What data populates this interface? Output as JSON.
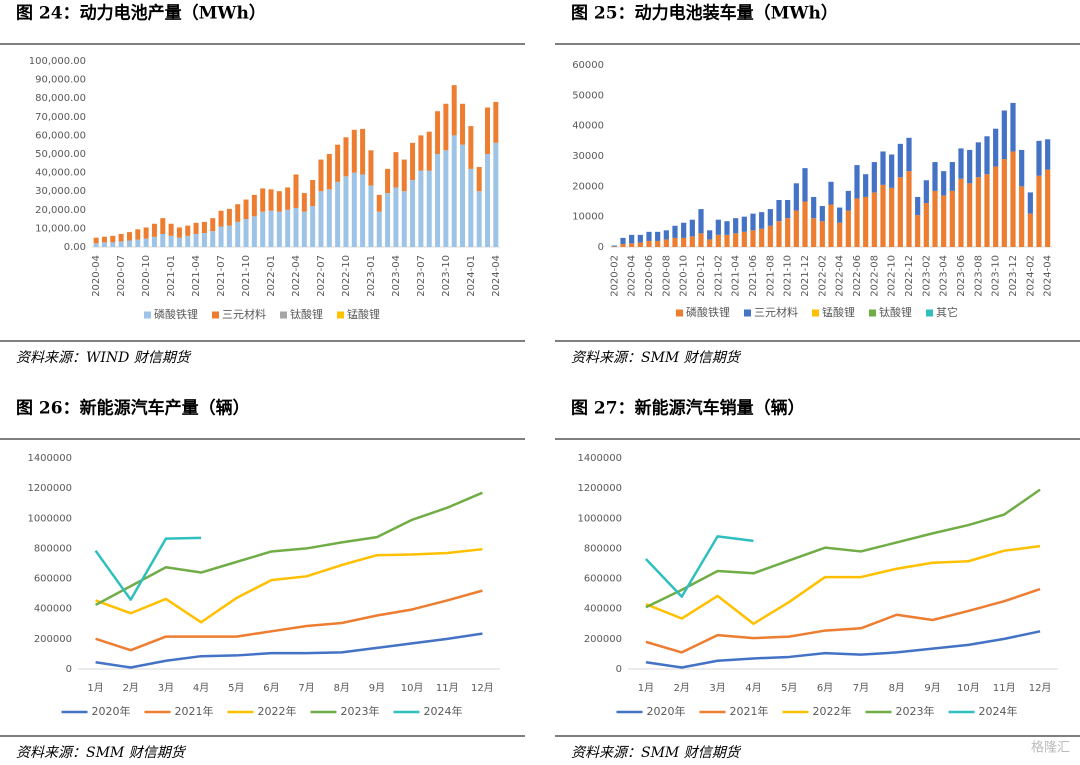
{
  "chart_data": [
    {
      "type": "bar",
      "stacked": true,
      "title": "图 24：动力电池产量（MWh）",
      "source": "资料来源：WIND 财信期货",
      "categories": [
        "2020-04",
        null,
        null,
        "2020-07",
        null,
        null,
        "2020-10",
        null,
        null,
        "2021-01",
        null,
        null,
        "2021-04",
        null,
        null,
        "2021-07",
        null,
        null,
        "2021-10",
        null,
        null,
        "2022-01",
        null,
        null,
        "2022-04",
        null,
        null,
        "2022-07",
        null,
        null,
        "2022-10",
        null,
        null,
        "2023-01",
        null,
        null,
        "2023-04",
        null,
        null,
        "2023-07",
        null,
        null,
        "2023-10",
        null,
        null,
        "2024-01",
        null,
        null,
        "2024-04"
      ],
      "series": [
        {
          "name": "磷酸铁锂",
          "color": "#9dc3e6",
          "values": [
            2000,
            2500,
            2500,
            3000,
            3500,
            4000,
            4500,
            5500,
            7000,
            6000,
            5000,
            6000,
            7000,
            7500,
            8500,
            11000,
            11500,
            13500,
            15000,
            16500,
            19000,
            19500,
            19000,
            20000,
            21000,
            19000,
            22000,
            30000,
            31000,
            35000,
            38000,
            40000,
            39000,
            33000,
            19000,
            29000,
            32000,
            30000,
            36000,
            41000,
            41000,
            50000,
            52000,
            60000,
            55000,
            42000,
            30000,
            50000,
            56000
          ]
        },
        {
          "name": "三元材料",
          "color": "#ed7d31",
          "values": [
            3000,
            3000,
            3500,
            4000,
            4500,
            5500,
            6000,
            7000,
            8500,
            6500,
            5500,
            5500,
            6000,
            6000,
            7000,
            8500,
            9000,
            9500,
            10500,
            11500,
            12500,
            11500,
            11000,
            12000,
            18000,
            10000,
            14000,
            17000,
            19000,
            20000,
            21000,
            23000,
            24500,
            19000,
            9000,
            13000,
            19000,
            17000,
            20000,
            19000,
            21000,
            23000,
            25000,
            27000,
            22000,
            23000,
            13000,
            25000,
            22000
          ]
        },
        {
          "name": "钛酸锂",
          "color": "#a5a5a5",
          "values": [
            0,
            0,
            0,
            0,
            0,
            0,
            0,
            0,
            0,
            0,
            0,
            0,
            0,
            0,
            0,
            0,
            0,
            0,
            0,
            0,
            0,
            0,
            0,
            0,
            0,
            0,
            0,
            0,
            0,
            0,
            0,
            0,
            0,
            0,
            0,
            0,
            0,
            0,
            0,
            0,
            0,
            0,
            0,
            0,
            0,
            0,
            0,
            0,
            0
          ]
        },
        {
          "name": "锰酸锂",
          "color": "#ffc000",
          "values": [
            0,
            0,
            0,
            0,
            0,
            0,
            0,
            0,
            0,
            0,
            0,
            0,
            0,
            0,
            0,
            0,
            0,
            0,
            0,
            0,
            0,
            0,
            0,
            0,
            0,
            0,
            0,
            0,
            0,
            0,
            0,
            0,
            0,
            0,
            0,
            0,
            0,
            0,
            0,
            0,
            0,
            0,
            0,
            0,
            0,
            0,
            0,
            0,
            0
          ]
        }
      ],
      "ylim": [
        0,
        100000
      ],
      "yticks": [
        {
          "value": 0,
          "label": "0.00"
        },
        {
          "value": 10000,
          "label": "10,000.00"
        },
        {
          "value": 20000,
          "label": "20,000.00"
        },
        {
          "value": 30000,
          "label": "30,000.00"
        },
        {
          "value": 40000,
          "label": "40,000.00"
        },
        {
          "value": 50000,
          "label": "50,000.00"
        },
        {
          "value": 60000,
          "label": "60,000.00"
        },
        {
          "value": 70000,
          "label": "70,000.00"
        },
        {
          "value": 80000,
          "label": "80,000.00"
        },
        {
          "value": 90000,
          "label": "90,000.00"
        },
        {
          "value": 100000,
          "label": "100,000.00"
        }
      ],
      "legend": "bottom",
      "grid": false
    },
    {
      "type": "bar",
      "stacked": true,
      "title": "图 25：动力电池装车量（MWh）",
      "source": "资料来源：SMM 财信期货",
      "categories": [
        "2020-02",
        null,
        "2020-04",
        null,
        "2020-06",
        null,
        "2020-08",
        null,
        "2020-10",
        null,
        "2020-12",
        null,
        "2021-02",
        null,
        "2021-04",
        null,
        "2021-06",
        null,
        "2021-08",
        null,
        "2021-10",
        null,
        "2021-12",
        null,
        "2022-02",
        null,
        "2022-04",
        null,
        "2022-06",
        null,
        "2022-08",
        null,
        "2022-10",
        null,
        "2022-12",
        null,
        "2023-02",
        null,
        "2023-04",
        null,
        "2023-06",
        null,
        "2023-08",
        null,
        "2023-10",
        null,
        "2023-12",
        null,
        "2024-02",
        null,
        "2024-04"
      ],
      "series": [
        {
          "name": "磷酸铁锂",
          "color": "#ed7d31",
          "values": [
            200,
            1000,
            1200,
            1500,
            2000,
            2000,
            2500,
            3000,
            3000,
            3500,
            4500,
            2500,
            4000,
            4000,
            4500,
            5000,
            5500,
            6000,
            7000,
            8500,
            9500,
            12000,
            15000,
            9500,
            8500,
            14000,
            8000,
            12000,
            16000,
            16500,
            18000,
            20500,
            19500,
            23000,
            25000,
            10500,
            14500,
            18500,
            17000,
            18500,
            22500,
            21000,
            23000,
            24000,
            26500,
            29000,
            31500,
            20000,
            11000,
            23500,
            25500
          ]
        },
        {
          "name": "三元材料",
          "color": "#4472c4",
          "values": [
            300,
            2000,
            2800,
            2500,
            3000,
            3000,
            3000,
            4000,
            5000,
            5500,
            8000,
            3000,
            5000,
            4500,
            5000,
            5000,
            5500,
            5500,
            5500,
            7000,
            6000,
            9000,
            11000,
            7000,
            5000,
            7500,
            5000,
            6500,
            11000,
            7500,
            10000,
            11000,
            11000,
            11000,
            11000,
            6000,
            7500,
            9500,
            8000,
            9500,
            10000,
            11000,
            11500,
            12500,
            12500,
            16000,
            16000,
            12000,
            7000,
            11500,
            10000
          ]
        },
        {
          "name": "锰酸锂",
          "color": "#ffc000",
          "values": [
            0,
            0,
            0,
            0,
            0,
            0,
            0,
            0,
            0,
            0,
            0,
            0,
            0,
            0,
            0,
            0,
            0,
            0,
            0,
            0,
            0,
            0,
            0,
            0,
            0,
            0,
            0,
            0,
            0,
            0,
            0,
            0,
            0,
            0,
            0,
            0,
            0,
            0,
            0,
            0,
            0,
            0,
            0,
            0,
            0,
            0,
            0,
            0,
            0,
            0,
            0
          ]
        },
        {
          "name": "钛酸锂",
          "color": "#70ad47",
          "values": [
            0,
            0,
            0,
            0,
            0,
            0,
            0,
            0,
            0,
            0,
            0,
            0,
            0,
            0,
            0,
            0,
            0,
            0,
            0,
            0,
            0,
            0,
            0,
            0,
            0,
            0,
            0,
            0,
            0,
            0,
            0,
            0,
            0,
            0,
            0,
            0,
            0,
            0,
            0,
            0,
            0,
            0,
            0,
            0,
            0,
            0,
            0,
            0,
            0,
            0,
            0
          ]
        },
        {
          "name": "其它",
          "color": "#2fbfbf",
          "values": [
            0,
            0,
            0,
            0,
            0,
            0,
            0,
            0,
            0,
            0,
            0,
            0,
            0,
            0,
            0,
            0,
            0,
            0,
            0,
            0,
            0,
            0,
            0,
            0,
            0,
            0,
            0,
            0,
            0,
            0,
            0,
            0,
            0,
            0,
            0,
            0,
            0,
            0,
            0,
            0,
            0,
            0,
            0,
            0,
            0,
            0,
            0,
            0,
            0,
            0,
            0
          ]
        }
      ],
      "ylim": [
        0,
        60000
      ],
      "yticks": [
        0,
        10000,
        20000,
        30000,
        40000,
        50000,
        60000
      ],
      "legend": "bottom",
      "grid": false
    },
    {
      "type": "line",
      "title": "图 26：新能源汽车产量（辆）",
      "source": "资料来源：SMM 财信期货",
      "categories": [
        "1月",
        "2月",
        "3月",
        "4月",
        "5月",
        "6月",
        "7月",
        "8月",
        "9月",
        "10月",
        "11月",
        "12月"
      ],
      "series": [
        {
          "name": "2020年",
          "color": "#4472c4",
          "values": [
            45000,
            10000,
            55000,
            85000,
            90000,
            105000,
            105000,
            110000,
            140000,
            170000,
            200000,
            235000
          ]
        },
        {
          "name": "2021年",
          "color": "#ed7d31",
          "values": [
            200000,
            125000,
            215000,
            215000,
            215000,
            250000,
            285000,
            305000,
            355000,
            395000,
            455000,
            520000
          ]
        },
        {
          "name": "2022年",
          "color": "#ffc000",
          "values": [
            455000,
            370000,
            465000,
            310000,
            470000,
            590000,
            615000,
            690000,
            755000,
            760000,
            770000,
            795000
          ]
        },
        {
          "name": "2023年",
          "color": "#70ad47",
          "values": [
            425000,
            550000,
            675000,
            640000,
            710000,
            780000,
            800000,
            840000,
            875000,
            990000,
            1070000,
            1170000
          ]
        },
        {
          "name": "2024年",
          "color": "#2fbfbf",
          "values": [
            785000,
            460000,
            865000,
            870000,
            null,
            null,
            null,
            null,
            null,
            null,
            null,
            null
          ]
        }
      ],
      "ylim": [
        0,
        1400000
      ],
      "yticks": [
        0,
        200000,
        400000,
        600000,
        800000,
        1000000,
        1200000,
        1400000
      ],
      "legend": "bottom",
      "grid": false
    },
    {
      "type": "line",
      "title": "图 27：新能源汽车销量（辆）",
      "source": "资料来源：SMM 财信期货",
      "categories": [
        "1月",
        "2月",
        "3月",
        "4月",
        "5月",
        "6月",
        "7月",
        "8月",
        "9月",
        "10月",
        "11月",
        "12月"
      ],
      "series": [
        {
          "name": "2020年",
          "color": "#4472c4",
          "values": [
            45000,
            10000,
            55000,
            70000,
            80000,
            105000,
            95000,
            110000,
            135000,
            160000,
            200000,
            250000
          ]
        },
        {
          "name": "2021年",
          "color": "#ed7d31",
          "values": [
            180000,
            110000,
            225000,
            205000,
            215000,
            255000,
            270000,
            360000,
            325000,
            385000,
            450000,
            530000
          ]
        },
        {
          "name": "2022年",
          "color": "#ffc000",
          "values": [
            430000,
            335000,
            485000,
            300000,
            445000,
            610000,
            610000,
            665000,
            705000,
            715000,
            785000,
            815000
          ]
        },
        {
          "name": "2023年",
          "color": "#70ad47",
          "values": [
            410000,
            525000,
            650000,
            635000,
            720000,
            805000,
            780000,
            840000,
            900000,
            955000,
            1025000,
            1190000
          ]
        },
        {
          "name": "2024年",
          "color": "#2fbfbf",
          "values": [
            730000,
            480000,
            880000,
            850000,
            null,
            null,
            null,
            null,
            null,
            null,
            null,
            null
          ]
        }
      ],
      "ylim": [
        0,
        1400000
      ],
      "yticks": [
        0,
        200000,
        400000,
        600000,
        800000,
        1000000,
        1200000,
        1400000
      ],
      "legend": "bottom",
      "grid": false
    }
  ],
  "watermark": "格隆汇"
}
